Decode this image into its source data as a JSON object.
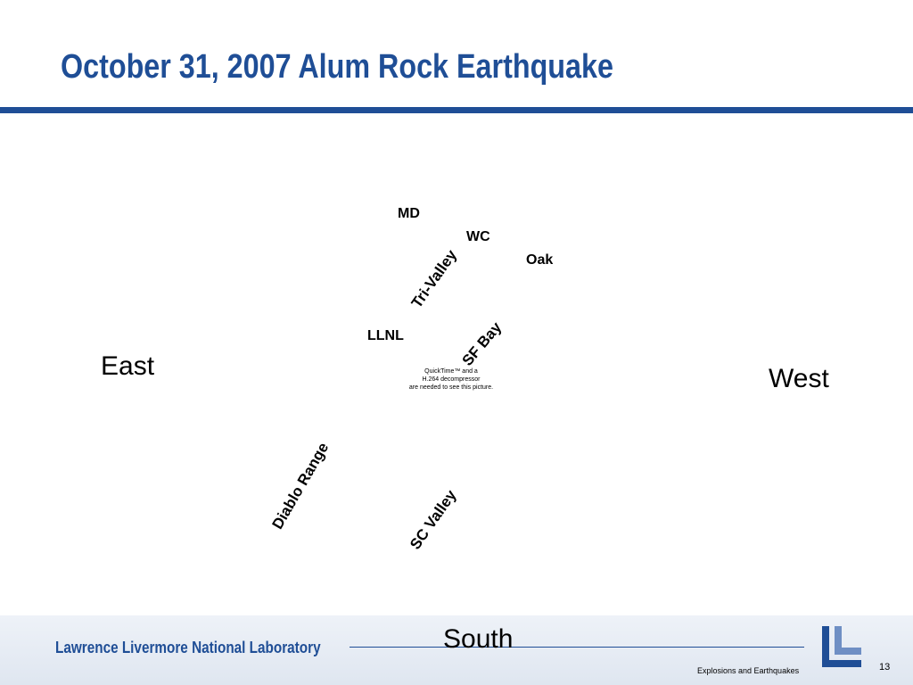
{
  "header": {
    "title": "October 31, 2007 Alum Rock Earthquake"
  },
  "map": {
    "labels": [
      "MD",
      "WC",
      "Oak",
      "LLNL"
    ],
    "regions": [
      "Tri-Valley",
      "SF Bay",
      "Diablo Range",
      "SC Valley"
    ],
    "directions": [
      "East",
      "West",
      "South"
    ],
    "placeholder": [
      "QuickTime™ and a",
      "H.264 decompressor",
      "are needed to see this picture."
    ]
  },
  "footer": {
    "organization": "Lawrence Livermore National Laboratory",
    "subtitle": "Explosions and Earthquakes",
    "page": "13"
  }
}
